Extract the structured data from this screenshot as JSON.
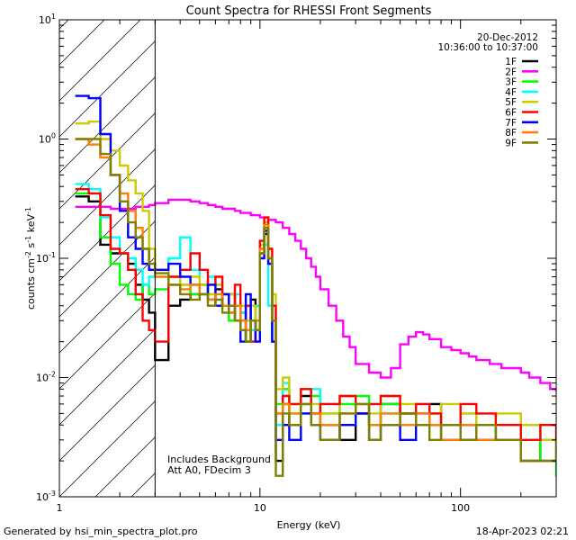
{
  "chart_data": {
    "type": "line",
    "title": "Count Spectra for RHESSI Front Segments",
    "xlabel": "Energy (keV)",
    "ylabel_parts": {
      "pre": "counts cm",
      "sup1": "-2",
      "mid": " s",
      "sup2": "-1",
      "mid2": " keV",
      "sup3": "-1"
    },
    "xscale": "log",
    "yscale": "log",
    "xlim": [
      1,
      300
    ],
    "ylim": [
      0.001,
      10
    ],
    "x_ticks": [
      {
        "v": 1,
        "label": "1"
      },
      {
        "v": 10,
        "label": "10"
      },
      {
        "v": 100,
        "label": "100"
      }
    ],
    "y_ticks": [
      {
        "v": 0.001,
        "base": "10",
        "exp": "-3"
      },
      {
        "v": 0.01,
        "base": "10",
        "exp": "-2"
      },
      {
        "v": 0.1,
        "base": "10",
        "exp": "-1"
      },
      {
        "v": 1,
        "base": "10",
        "exp": "0"
      },
      {
        "v": 10,
        "base": "10",
        "exp": "1"
      }
    ],
    "hatch_region": [
      1,
      3
    ],
    "date": "20-Dec-2012",
    "time_range": "10:36:00 to 10:37:00",
    "annotations": [
      "Includes Background",
      "Att A0, FDecim 3"
    ],
    "series": [
      {
        "name": "1F",
        "color": "#000000",
        "x": [
          1.2,
          1.4,
          1.6,
          1.8,
          2.0,
          2.2,
          2.4,
          2.6,
          2.8,
          3.0,
          3.5,
          4,
          4.5,
          5,
          5.5,
          6,
          6.5,
          7,
          7.5,
          8,
          8.5,
          9,
          9.5,
          10,
          10.5,
          11,
          11.5,
          12,
          13,
          14,
          16,
          18,
          20,
          25,
          30,
          35,
          40,
          50,
          60,
          70,
          80,
          100,
          120,
          150,
          200,
          250,
          300
        ],
        "y": [
          0.33,
          0.3,
          0.13,
          0.11,
          0.11,
          0.09,
          0.06,
          0.045,
          0.035,
          0.014,
          0.04,
          0.045,
          0.05,
          0.06,
          0.045,
          0.055,
          0.04,
          0.05,
          0.03,
          0.035,
          0.02,
          0.045,
          0.025,
          0.11,
          0.16,
          0.09,
          0.02,
          0.002,
          0.006,
          0.004,
          0.007,
          0.005,
          0.004,
          0.003,
          0.005,
          0.004,
          0.006,
          0.005,
          0.004,
          0.006,
          0.004,
          0.003,
          0.004,
          0.003,
          0.002,
          0.003,
          0.002
        ]
      },
      {
        "name": "2F",
        "color": "#ff00ff",
        "x": [
          1.2,
          1.4,
          1.6,
          1.8,
          2.0,
          2.2,
          2.4,
          2.6,
          2.8,
          3.0,
          3.5,
          4,
          4.5,
          5,
          5.5,
          6,
          6.5,
          7,
          7.5,
          8,
          8.5,
          9,
          9.5,
          10,
          11,
          12,
          13,
          14,
          15,
          16,
          17,
          18,
          19,
          20,
          22,
          24,
          26,
          28,
          30,
          35,
          40,
          45,
          50,
          55,
          60,
          65,
          70,
          80,
          90,
          100,
          110,
          120,
          140,
          160,
          180,
          200,
          220,
          250,
          280,
          300
        ],
        "y": [
          0.27,
          0.27,
          0.27,
          0.26,
          0.26,
          0.26,
          0.27,
          0.27,
          0.28,
          0.29,
          0.31,
          0.31,
          0.3,
          0.29,
          0.28,
          0.27,
          0.26,
          0.26,
          0.25,
          0.24,
          0.24,
          0.23,
          0.23,
          0.22,
          0.21,
          0.2,
          0.18,
          0.16,
          0.14,
          0.12,
          0.1,
          0.085,
          0.07,
          0.055,
          0.04,
          0.03,
          0.022,
          0.018,
          0.013,
          0.011,
          0.01,
          0.012,
          0.019,
          0.022,
          0.024,
          0.023,
          0.021,
          0.018,
          0.017,
          0.016,
          0.015,
          0.014,
          0.013,
          0.012,
          0.012,
          0.011,
          0.01,
          0.009,
          0.008,
          0.0078
        ]
      },
      {
        "name": "3F",
        "color": "#00ff00",
        "x": [
          1.2,
          1.4,
          1.6,
          1.8,
          2.0,
          2.2,
          2.4,
          2.6,
          2.8,
          3.0,
          3.5,
          4,
          4.5,
          5,
          5.5,
          6,
          6.5,
          7,
          7.5,
          8,
          8.5,
          9,
          9.5,
          10,
          10.5,
          11,
          11.5,
          12,
          13,
          14,
          16,
          18,
          20,
          25,
          30,
          35,
          40,
          50,
          60,
          70,
          80,
          100,
          120,
          150,
          200,
          250,
          300
        ],
        "y": [
          0.35,
          0.35,
          0.15,
          0.09,
          0.06,
          0.05,
          0.045,
          0.06,
          0.05,
          0.055,
          0.06,
          0.06,
          0.05,
          0.06,
          0.05,
          0.04,
          0.05,
          0.03,
          0.04,
          0.03,
          0.02,
          0.03,
          0.04,
          0.12,
          0.18,
          0.1,
          0.03,
          0.006,
          0.008,
          0.005,
          0.006,
          0.007,
          0.005,
          0.006,
          0.007,
          0.004,
          0.006,
          0.005,
          0.004,
          0.005,
          0.004,
          0.004,
          0.003,
          0.003,
          0.003,
          0.002,
          0.0015
        ]
      },
      {
        "name": "4F",
        "color": "#00ffff",
        "x": [
          1.2,
          1.4,
          1.6,
          1.8,
          2.0,
          2.2,
          2.4,
          2.6,
          2.8,
          3.0,
          3.5,
          4,
          4.5,
          5,
          5.5,
          6,
          6.5,
          7,
          7.5,
          8,
          8.5,
          9,
          9.5,
          10,
          10.5,
          11,
          11.5,
          12,
          13,
          14,
          16,
          18,
          20,
          25,
          30,
          35,
          40,
          50,
          60,
          70,
          80,
          100,
          120,
          150,
          200,
          250,
          300
        ],
        "y": [
          0.42,
          0.38,
          0.22,
          0.15,
          0.11,
          0.1,
          0.08,
          0.06,
          0.07,
          0.07,
          0.1,
          0.15,
          0.08,
          0.05,
          0.07,
          0.06,
          0.05,
          0.04,
          0.05,
          0.035,
          0.03,
          0.025,
          0.04,
          0.14,
          0.13,
          0.04,
          0.02,
          0.004,
          0.009,
          0.006,
          0.005,
          0.008,
          0.006,
          0.004,
          0.005,
          0.006,
          0.005,
          0.004,
          0.006,
          0.005,
          0.004,
          0.005,
          0.004,
          0.003,
          0.004,
          0.003,
          0.003
        ]
      },
      {
        "name": "5F",
        "color": "#cccc00",
        "x": [
          1.2,
          1.4,
          1.6,
          1.8,
          2.0,
          2.2,
          2.4,
          2.6,
          2.8,
          3.0,
          3.5,
          4,
          4.5,
          5,
          5.5,
          6,
          6.5,
          7,
          7.5,
          8,
          8.5,
          9,
          9.5,
          10,
          10.5,
          11,
          11.5,
          12,
          13,
          14,
          16,
          18,
          20,
          25,
          30,
          35,
          40,
          50,
          60,
          70,
          80,
          100,
          120,
          150,
          200,
          250,
          300
        ],
        "y": [
          1.35,
          1.4,
          1.0,
          0.8,
          0.6,
          0.45,
          0.35,
          0.25,
          0.12,
          0.08,
          0.07,
          0.06,
          0.07,
          0.06,
          0.05,
          0.06,
          0.04,
          0.05,
          0.03,
          0.04,
          0.03,
          0.04,
          0.02,
          0.13,
          0.2,
          0.12,
          0.05,
          0.008,
          0.01,
          0.006,
          0.008,
          0.006,
          0.005,
          0.007,
          0.006,
          0.005,
          0.007,
          0.006,
          0.004,
          0.005,
          0.006,
          0.005,
          0.004,
          0.005,
          0.004,
          0.003,
          0.002
        ]
      },
      {
        "name": "6F",
        "color": "#ff0000",
        "x": [
          1.2,
          1.4,
          1.6,
          1.8,
          2.0,
          2.2,
          2.4,
          2.6,
          2.8,
          3.0,
          3.5,
          4,
          4.5,
          5,
          5.5,
          6,
          6.5,
          7,
          7.5,
          8,
          8.5,
          9,
          9.5,
          10,
          10.5,
          11,
          11.5,
          12,
          13,
          14,
          16,
          18,
          20,
          25,
          30,
          35,
          40,
          50,
          60,
          70,
          80,
          100,
          120,
          150,
          200,
          250,
          300
        ],
        "y": [
          0.38,
          0.35,
          0.23,
          0.12,
          0.11,
          0.08,
          0.05,
          0.03,
          0.025,
          0.02,
          0.07,
          0.08,
          0.11,
          0.08,
          0.06,
          0.07,
          0.05,
          0.04,
          0.06,
          0.03,
          0.04,
          0.02,
          0.03,
          0.14,
          0.22,
          0.12,
          0.04,
          0.005,
          0.007,
          0.006,
          0.008,
          0.005,
          0.006,
          0.007,
          0.005,
          0.006,
          0.007,
          0.005,
          0.006,
          0.005,
          0.004,
          0.006,
          0.005,
          0.004,
          0.003,
          0.004,
          0.003
        ]
      },
      {
        "name": "7F",
        "color": "#0000ff",
        "x": [
          1.2,
          1.4,
          1.6,
          1.8,
          2.0,
          2.2,
          2.4,
          2.6,
          2.8,
          3.0,
          3.5,
          4,
          4.5,
          5,
          5.5,
          6,
          6.5,
          7,
          7.5,
          8,
          8.5,
          9,
          9.5,
          10,
          10.5,
          11,
          11.5,
          12,
          13,
          14,
          16,
          18,
          20,
          25,
          30,
          35,
          40,
          50,
          60,
          70,
          80,
          100,
          120,
          150,
          200,
          250,
          300
        ],
        "y": [
          2.3,
          2.2,
          1.1,
          0.5,
          0.25,
          0.15,
          0.12,
          0.09,
          0.08,
          0.08,
          0.09,
          0.07,
          0.06,
          0.05,
          0.06,
          0.04,
          0.05,
          0.035,
          0.04,
          0.02,
          0.05,
          0.03,
          0.02,
          0.1,
          0.17,
          0.09,
          0.02,
          0.003,
          0.004,
          0.003,
          0.005,
          0.004,
          0.003,
          0.004,
          0.005,
          0.003,
          0.004,
          0.003,
          0.005,
          0.004,
          0.003,
          0.004,
          0.003,
          0.003,
          0.002,
          0.002,
          0.002
        ]
      },
      {
        "name": "8F",
        "color": "#ff8000",
        "x": [
          1.2,
          1.4,
          1.6,
          1.8,
          2.0,
          2.2,
          2.4,
          2.6,
          2.8,
          3.0,
          3.5,
          4,
          4.5,
          5,
          5.5,
          6,
          6.5,
          7,
          7.5,
          8,
          8.5,
          9,
          9.5,
          10,
          10.5,
          11,
          11.5,
          12,
          13,
          14,
          16,
          18,
          20,
          25,
          30,
          35,
          40,
          50,
          60,
          70,
          80,
          100,
          120,
          150,
          200,
          250,
          300
        ],
        "y": [
          1.0,
          0.9,
          0.7,
          0.5,
          0.35,
          0.25,
          0.18,
          0.12,
          0.09,
          0.07,
          0.06,
          0.055,
          0.06,
          0.05,
          0.045,
          0.05,
          0.04,
          0.035,
          0.04,
          0.03,
          0.025,
          0.03,
          0.03,
          0.12,
          0.19,
          0.1,
          0.03,
          0.005,
          0.006,
          0.005,
          0.006,
          0.005,
          0.004,
          0.005,
          0.006,
          0.004,
          0.005,
          0.004,
          0.005,
          0.004,
          0.003,
          0.004,
          0.003,
          0.003,
          0.002,
          0.002,
          0.002
        ]
      },
      {
        "name": "9F",
        "color": "#808000",
        "x": [
          1.2,
          1.4,
          1.6,
          1.8,
          2.0,
          2.2,
          2.4,
          2.6,
          2.8,
          3.0,
          3.5,
          4,
          4.5,
          5,
          5.5,
          6,
          6.5,
          7,
          7.5,
          8,
          8.5,
          9,
          9.5,
          10,
          10.5,
          11,
          11.5,
          12,
          13,
          14,
          16,
          18,
          20,
          25,
          30,
          35,
          40,
          50,
          60,
          70,
          80,
          100,
          120,
          150,
          200,
          250,
          300
        ],
        "y": [
          1.0,
          1.0,
          0.75,
          0.5,
          0.3,
          0.2,
          0.15,
          0.12,
          0.09,
          0.075,
          0.06,
          0.05,
          0.045,
          0.05,
          0.04,
          0.045,
          0.035,
          0.04,
          0.03,
          0.025,
          0.02,
          0.03,
          0.025,
          0.11,
          0.18,
          0.1,
          0.03,
          0.0015,
          0.005,
          0.004,
          0.006,
          0.004,
          0.003,
          0.005,
          0.006,
          0.003,
          0.004,
          0.005,
          0.004,
          0.003,
          0.004,
          0.003,
          0.004,
          0.003,
          0.002,
          0.002,
          0.002
        ]
      }
    ]
  },
  "footer": {
    "generated_by": "Generated by hsi_min_spectra_plot.pro",
    "timestamp": "18-Apr-2023 02:21"
  }
}
